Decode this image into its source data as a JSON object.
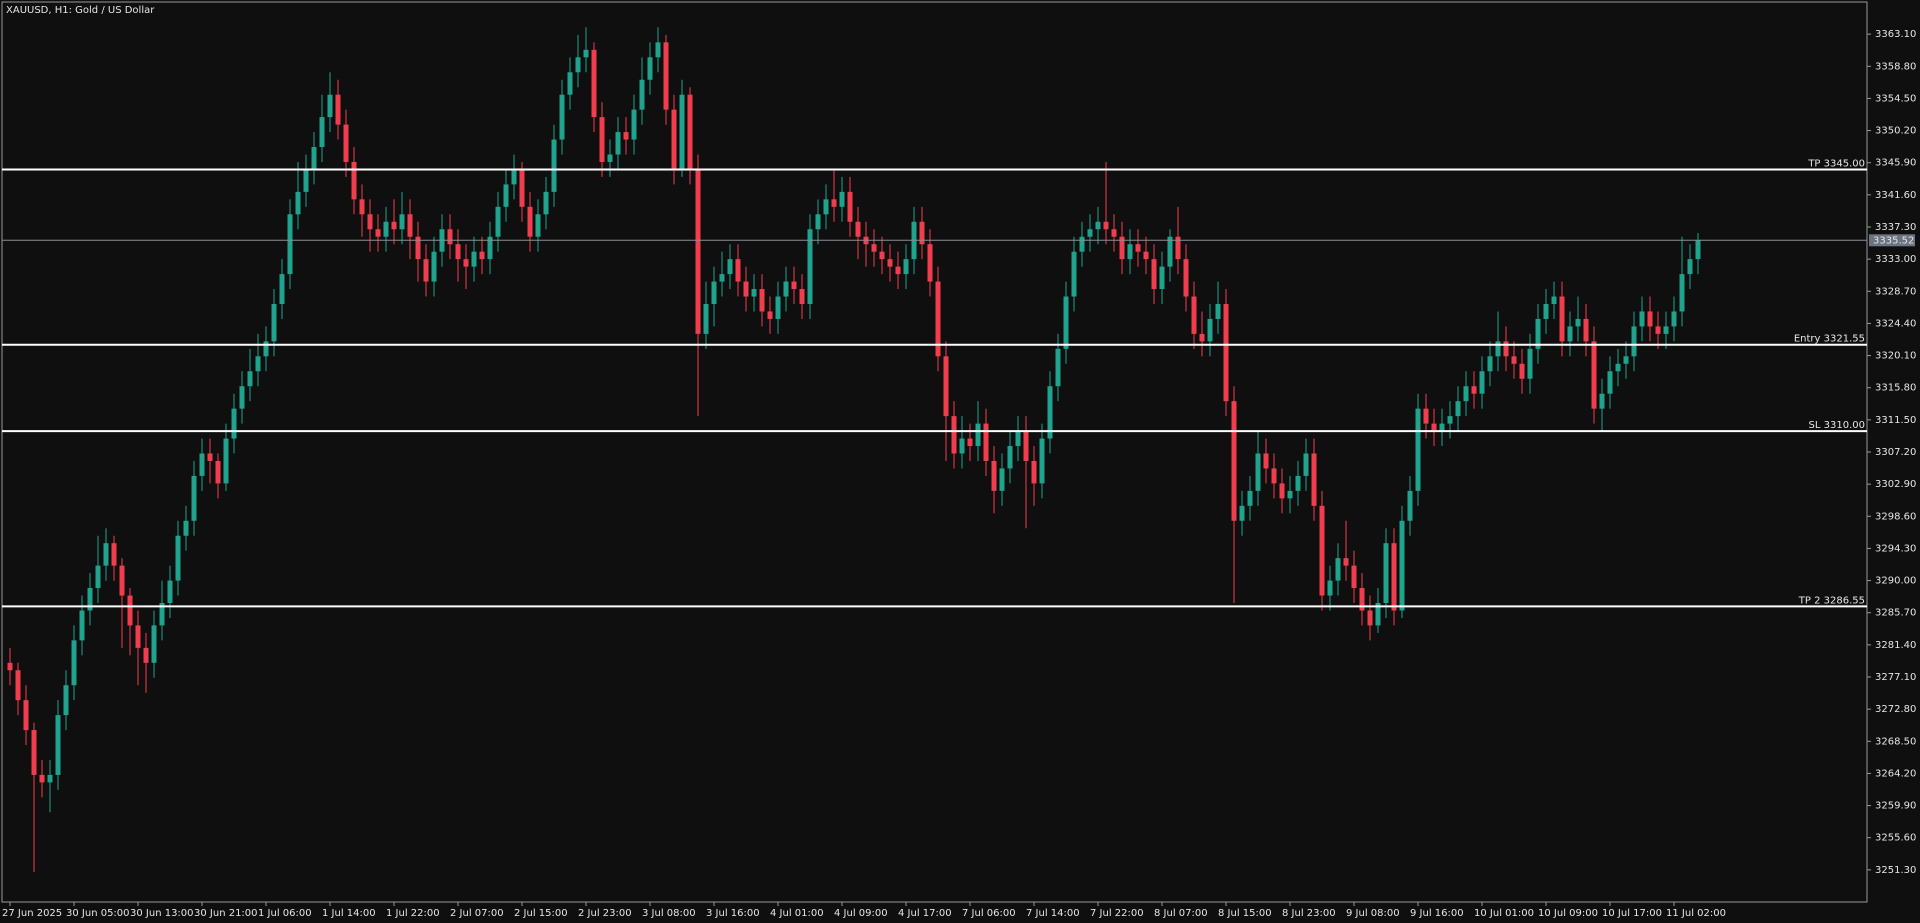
{
  "chart_data": {
    "type": "candlestick",
    "title": "XAUUSD, H1:  Gold / US Dollar",
    "up_color": "#1fa38c",
    "down_color": "#f23d4f",
    "level_color": "#ffffff",
    "current_color": "#8a8f96",
    "ylim": [
      3247.0,
      3367.4
    ],
    "yticks": [
      {
        "value": 3363.1,
        "label": "3363.10"
      },
      {
        "value": 3358.8,
        "label": "3358.80"
      },
      {
        "value": 3354.5,
        "label": "3354.50"
      },
      {
        "value": 3350.2,
        "label": "3350.20"
      },
      {
        "value": 3345.9,
        "label": "3345.90"
      },
      {
        "value": 3341.6,
        "label": "3341.60"
      },
      {
        "value": 3337.3,
        "label": "3337.30"
      },
      {
        "value": 3333,
        "label": "3333.00"
      },
      {
        "value": 3328.7,
        "label": "3328.70"
      },
      {
        "value": 3324.4,
        "label": "3324.40"
      },
      {
        "value": 3320.1,
        "label": "3320.10"
      },
      {
        "value": 3315.8,
        "label": "3315.80"
      },
      {
        "value": 3311.5,
        "label": "3311.50"
      },
      {
        "value": 3307.2,
        "label": "3307.20"
      },
      {
        "value": 3302.9,
        "label": "3302.90"
      },
      {
        "value": 3298.6,
        "label": "3298.60"
      },
      {
        "value": 3294.3,
        "label": "3294.30"
      },
      {
        "value": 3290,
        "label": "3290.00"
      },
      {
        "value": 3285.7,
        "label": "3285.70"
      },
      {
        "value": 3281.4,
        "label": "3281.40"
      },
      {
        "value": 3277.1,
        "label": "3277.10"
      },
      {
        "value": 3272.8,
        "label": "3272.80"
      },
      {
        "value": 3268.5,
        "label": "3268.50"
      },
      {
        "value": 3264.2,
        "label": "3264.20"
      },
      {
        "value": 3259.9,
        "label": "3259.90"
      },
      {
        "value": 3255.6,
        "label": "3255.60"
      },
      {
        "value": 3251.3,
        "label": "3251.30"
      }
    ],
    "levels": [
      {
        "value": 3345,
        "label": "TP 3345.00"
      },
      {
        "value": 3321.55,
        "label": "Entry 3321.55"
      },
      {
        "value": 3310,
        "label": "SL 3310.00"
      },
      {
        "value": 3286.55,
        "label": "TP 2 3286.55"
      }
    ],
    "current_price": 3335.52,
    "categories": [
      "27 Jun 2025",
      null,
      null,
      null,
      null,
      null,
      null,
      null,
      "30 Jun 05:00",
      null,
      null,
      null,
      null,
      null,
      null,
      null,
      "30 Jun 13:00",
      null,
      null,
      null,
      null,
      null,
      null,
      null,
      "30 Jun 21:00",
      null,
      null,
      null,
      null,
      null,
      null,
      null,
      "1 Jul 06:00",
      null,
      null,
      null,
      null,
      null,
      null,
      null,
      "1 Jul 14:00",
      null,
      null,
      null,
      null,
      null,
      null,
      null,
      "1 Jul 22:00",
      null,
      null,
      null,
      null,
      null,
      null,
      null,
      "2 Jul 07:00",
      null,
      null,
      null,
      null,
      null,
      null,
      null,
      "2 Jul 15:00",
      null,
      null,
      null,
      null,
      null,
      null,
      null,
      "2 Jul 23:00",
      null,
      null,
      null,
      null,
      null,
      null,
      null,
      "3 Jul 08:00",
      null,
      null,
      null,
      null,
      null,
      null,
      null,
      "3 Jul 16:00",
      null,
      null,
      null,
      null,
      null,
      null,
      null,
      "4 Jul 01:00",
      null,
      null,
      null,
      null,
      null,
      null,
      null,
      "4 Jul 09:00",
      null,
      null,
      null,
      null,
      null,
      null,
      null,
      "4 Jul 17:00",
      null,
      null,
      null,
      null,
      null,
      null,
      null,
      "7 Jul 06:00",
      null,
      null,
      null,
      null,
      null,
      null,
      null,
      "7 Jul 14:00",
      null,
      null,
      null,
      null,
      null,
      null,
      null,
      "7 Jul 22:00",
      null,
      null,
      null,
      null,
      null,
      null,
      null,
      "8 Jul 07:00",
      null,
      null,
      null,
      null,
      null,
      null,
      null,
      "8 Jul 15:00",
      null,
      null,
      null,
      null,
      null,
      null,
      null,
      "8 Jul 23:00",
      null,
      null,
      null,
      null,
      null,
      null,
      null,
      "9 Jul 08:00",
      null,
      null,
      null,
      null,
      null,
      null,
      null,
      "9 Jul 16:00",
      null,
      null,
      null,
      null,
      null,
      null,
      null,
      "10 Jul 01:00",
      null,
      null,
      null,
      null,
      null,
      null,
      null,
      "10 Jul 09:00",
      null,
      null,
      null,
      null,
      null,
      null,
      null,
      "10 Jul 17:00",
      null,
      null,
      null,
      null,
      null,
      null,
      null,
      "11 Jul 02:00",
      null,
      null,
      null
    ],
    "open": [
      3279,
      3278,
      3274,
      3270,
      3264,
      3263,
      3264,
      3272,
      3276,
      3282,
      3286,
      3289,
      3292,
      3295,
      3292,
      3288,
      3284,
      3281,
      3279,
      3284,
      3287,
      3290,
      3296,
      3298,
      3304,
      3307,
      3306,
      3303,
      3309,
      3313,
      3316,
      3318,
      3320,
      3322,
      3327,
      3331,
      3339,
      3342,
      3345,
      3348,
      3352,
      3355,
      3351,
      3346,
      3341,
      3339,
      3337,
      3336,
      3338,
      3337,
      3339,
      3336,
      3333,
      3330,
      3334,
      3337,
      3335,
      3333,
      3332,
      3334,
      3333,
      3336,
      3340,
      3343,
      3345,
      3340,
      3336,
      3339,
      3342,
      3349,
      3355,
      3358,
      3360,
      3361,
      3352,
      3346,
      3347,
      3350,
      3349,
      3353,
      3357,
      3360,
      3362,
      3353,
      3345,
      3355,
      3345,
      3323,
      3327,
      3330,
      3331,
      3333,
      3330,
      3328,
      3329,
      3326,
      3325,
      3328,
      3330,
      3329,
      3327,
      3337,
      3339,
      3341,
      3340,
      3342,
      3338,
      3336,
      3335,
      3334,
      3333,
      3332,
      3331,
      3333,
      3338,
      3335,
      3330,
      3320,
      3312,
      3307,
      3309,
      3308,
      3311,
      3306,
      3302,
      3305,
      3308,
      3310,
      3306,
      3303,
      3309,
      3316,
      3321,
      3328,
      3334,
      3336,
      3337,
      3338,
      3337,
      3336,
      3333,
      3335,
      3334,
      3333,
      3329,
      3332,
      3336,
      3333,
      3328,
      3323,
      3322,
      3325,
      3327,
      3314,
      3298,
      3300,
      3302,
      3307,
      3305,
      3303,
      3301,
      3302,
      3304,
      3307,
      3300,
      3288,
      3290,
      3293,
      3292,
      3289,
      3286,
      3284,
      3287,
      3295,
      3286,
      3298,
      3302,
      3313,
      3311,
      3310,
      3311,
      3312,
      3314,
      3316,
      3315,
      3318,
      3320,
      3322,
      3320,
      3319,
      3317,
      3321,
      3325,
      3327,
      3328,
      3322,
      3324,
      3325,
      3322,
      3313,
      3315,
      3318,
      3319,
      3320,
      3324,
      3326,
      3324,
      3323,
      3324,
      3326,
      3331,
      3333
    ],
    "high": [
      3281,
      3279,
      3276,
      3271,
      3266,
      3266,
      3274,
      3278,
      3284,
      3288,
      3291,
      3296,
      3297,
      3296,
      3293,
      3289,
      3286,
      3283,
      3286,
      3290,
      3292,
      3298,
      3300,
      3306,
      3309,
      3309,
      3307,
      3311,
      3315,
      3318,
      3321,
      3323,
      3324,
      3329,
      3333,
      3341,
      3346,
      3347,
      3350,
      3355,
      3358,
      3357,
      3353,
      3348,
      3343,
      3341,
      3339,
      3340,
      3341,
      3342,
      3341,
      3338,
      3335,
      3336,
      3339,
      3339,
      3337,
      3335,
      3336,
      3336,
      3338,
      3342,
      3345,
      3347,
      3346,
      3342,
      3341,
      3344,
      3351,
      3357,
      3360,
      3363,
      3364,
      3362,
      3354,
      3349,
      3352,
      3352,
      3355,
      3360,
      3362,
      3364,
      3363,
      3355,
      3357,
      3356,
      3347,
      3330,
      3332,
      3334,
      3335,
      3335,
      3332,
      3331,
      3331,
      3328,
      3330,
      3332,
      3332,
      3331,
      3339,
      3341,
      3343,
      3345,
      3344,
      3344,
      3340,
      3338,
      3337,
      3336,
      3335,
      3334,
      3335,
      3340,
      3340,
      3337,
      3332,
      3322,
      3314,
      3312,
      3311,
      3314,
      3313,
      3308,
      3307,
      3310,
      3312,
      3312,
      3308,
      3311,
      3318,
      3323,
      3330,
      3336,
      3338,
      3339,
      3340,
      3346,
      3339,
      3338,
      3337,
      3337,
      3336,
      3335,
      3334,
      3337,
      3340,
      3335,
      3330,
      3326,
      3327,
      3330,
      3329,
      3316,
      3302,
      3304,
      3310,
      3309,
      3307,
      3305,
      3304,
      3306,
      3309,
      3309,
      3302,
      3292,
      3295,
      3298,
      3294,
      3291,
      3288,
      3289,
      3297,
      3297,
      3300,
      3304,
      3315,
      3315,
      3313,
      3313,
      3314,
      3316,
      3318,
      3318,
      3320,
      3322,
      3326,
      3324,
      3322,
      3321,
      3323,
      3327,
      3329,
      3330,
      3330,
      3326,
      3328,
      3327,
      3324,
      3317,
      3320,
      3321,
      3322,
      3326,
      3328,
      3328,
      3326,
      3326,
      3328,
      3336,
      3335,
      3336.5
    ],
    "low": [
      3276,
      3272,
      3268,
      3251,
      3261,
      3259,
      3262,
      3270,
      3274,
      3280,
      3284,
      3287,
      3290,
      3290,
      3281,
      3280,
      3276,
      3275,
      3277,
      3282,
      3285,
      3288,
      3294,
      3296,
      3302,
      3303,
      3301,
      3302,
      3307,
      3311,
      3314,
      3316,
      3318,
      3320,
      3325,
      3329,
      3337,
      3340,
      3343,
      3346,
      3350,
      3349,
      3344,
      3339,
      3336,
      3334,
      3334,
      3334,
      3335,
      3335,
      3333,
      3330,
      3328,
      3328,
      3332,
      3333,
      3330,
      3329,
      3330,
      3331,
      3331,
      3334,
      3338,
      3341,
      3338,
      3334,
      3334,
      3337,
      3340,
      3347,
      3353,
      3356,
      3358,
      3350,
      3344,
      3344,
      3345,
      3347,
      3347,
      3351,
      3355,
      3358,
      3351,
      3343,
      3344,
      3343,
      3312,
      3321,
      3324,
      3328,
      3329,
      3328,
      3326,
      3326,
      3324,
      3323,
      3323,
      3326,
      3327,
      3325,
      3325,
      3335,
      3337,
      3338,
      3338,
      3336,
      3333,
      3332,
      3332,
      3331,
      3330,
      3329,
      3329,
      3331,
      3333,
      3328,
      3318,
      3306,
      3305,
      3305,
      3306,
      3306,
      3304,
      3299,
      3300,
      3303,
      3306,
      3297,
      3300,
      3301,
      3307,
      3314,
      3319,
      3326,
      3332,
      3334,
      3335,
      3335,
      3334,
      3331,
      3331,
      3332,
      3331,
      3327,
      3327,
      3330,
      3331,
      3326,
      3321,
      3320,
      3320,
      3323,
      3312,
      3287,
      3296,
      3298,
      3300,
      3303,
      3301,
      3299,
      3299,
      3300,
      3302,
      3298,
      3286,
      3286,
      3288,
      3290,
      3287,
      3284,
      3282,
      3283,
      3285,
      3284,
      3285,
      3296,
      3300,
      3309,
      3308,
      3308,
      3309,
      3310,
      3312,
      3313,
      3313,
      3316,
      3318,
      3318,
      3317,
      3315,
      3315,
      3319,
      3323,
      3325,
      3320,
      3320,
      3322,
      3320,
      3311,
      3310,
      3313,
      3316,
      3317,
      3318,
      3322,
      3322,
      3321,
      3321,
      3322,
      3324,
      3329,
      3331
    ],
    "close": [
      3278,
      3274,
      3270,
      3264,
      3263,
      3264,
      3272,
      3276,
      3282,
      3286,
      3289,
      3292,
      3295,
      3292,
      3288,
      3284,
      3281,
      3279,
      3284,
      3287,
      3290,
      3296,
      3298,
      3304,
      3307,
      3306,
      3303,
      3309,
      3313,
      3316,
      3318,
      3320,
      3322,
      3327,
      3331,
      3339,
      3342,
      3345,
      3348,
      3352,
      3355,
      3351,
      3346,
      3341,
      3339,
      3337,
      3336,
      3338,
      3337,
      3339,
      3336,
      3333,
      3330,
      3334,
      3337,
      3335,
      3333,
      3332,
      3334,
      3333,
      3336,
      3340,
      3343,
      3345,
      3340,
      3336,
      3339,
      3342,
      3349,
      3355,
      3358,
      3360,
      3361,
      3352,
      3346,
      3347,
      3350,
      3349,
      3353,
      3357,
      3360,
      3362,
      3353,
      3345,
      3355,
      3345,
      3323,
      3327,
      3330,
      3331,
      3333,
      3330,
      3328,
      3329,
      3326,
      3325,
      3328,
      3330,
      3329,
      3327,
      3337,
      3339,
      3341,
      3340,
      3342,
      3338,
      3336,
      3335,
      3334,
      3333,
      3332,
      3331,
      3333,
      3338,
      3335,
      3330,
      3320,
      3312,
      3307,
      3309,
      3308,
      3311,
      3306,
      3302,
      3305,
      3308,
      3310,
      3306,
      3303,
      3309,
      3316,
      3321,
      3328,
      3334,
      3336,
      3337,
      3338,
      3337,
      3336,
      3333,
      3335,
      3334,
      3333,
      3329,
      3332,
      3336,
      3333,
      3328,
      3323,
      3322,
      3325,
      3327,
      3314,
      3298,
      3300,
      3302,
      3307,
      3305,
      3303,
      3301,
      3302,
      3304,
      3307,
      3300,
      3288,
      3290,
      3293,
      3292,
      3289,
      3286,
      3284,
      3287,
      3295,
      3286,
      3298,
      3302,
      3313,
      3311,
      3310,
      3311,
      3312,
      3314,
      3316,
      3315,
      3318,
      3320,
      3322,
      3320,
      3319,
      3317,
      3321,
      3325,
      3327,
      3328,
      3322,
      3324,
      3325,
      3322,
      3313,
      3315,
      3318,
      3319,
      3320,
      3324,
      3326,
      3324,
      3323,
      3324,
      3326,
      3331,
      3333,
      3335.52
    ]
  }
}
